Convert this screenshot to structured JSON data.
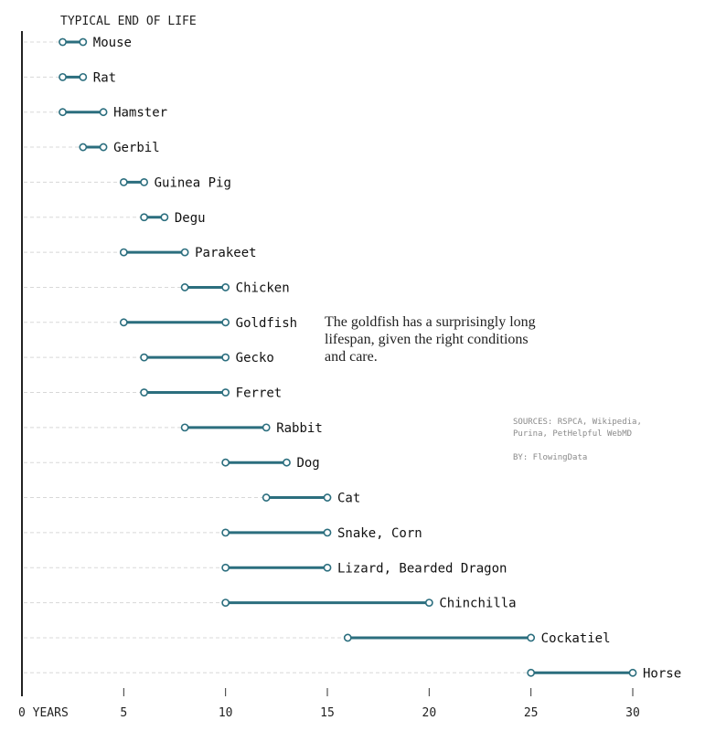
{
  "chart_data": {
    "type": "dumbbell",
    "title": "TYPICAL END OF LIFE",
    "xlabel": "YEARS",
    "xlim": [
      0,
      30
    ],
    "x_ticks": [
      0,
      5,
      10,
      15,
      20,
      25,
      30
    ],
    "x_tick_labels": [
      "0 YEARS",
      "5",
      "10",
      "15",
      "20",
      "25",
      "30"
    ],
    "grid": "dashed row guides from axis to range start",
    "series": [
      {
        "name": "Mouse",
        "min": 2,
        "max": 3
      },
      {
        "name": "Rat",
        "min": 2,
        "max": 3
      },
      {
        "name": "Hamster",
        "min": 2,
        "max": 4
      },
      {
        "name": "Gerbil",
        "min": 3,
        "max": 4
      },
      {
        "name": "Guinea Pig",
        "min": 5,
        "max": 6
      },
      {
        "name": "Degu",
        "min": 6,
        "max": 7
      },
      {
        "name": "Parakeet",
        "min": 5,
        "max": 8
      },
      {
        "name": "Chicken",
        "min": 8,
        "max": 10
      },
      {
        "name": "Goldfish",
        "min": 5,
        "max": 10
      },
      {
        "name": "Gecko",
        "min": 6,
        "max": 10
      },
      {
        "name": "Ferret",
        "min": 6,
        "max": 10
      },
      {
        "name": "Rabbit",
        "min": 8,
        "max": 12
      },
      {
        "name": "Dog",
        "min": 10,
        "max": 13
      },
      {
        "name": "Cat",
        "min": 12,
        "max": 15
      },
      {
        "name": "Snake, Corn",
        "min": 10,
        "max": 15
      },
      {
        "name": "Lizard, Bearded Dragon",
        "min": 10,
        "max": 15
      },
      {
        "name": "Chinchilla",
        "min": 10,
        "max": 20
      },
      {
        "name": "Cockatiel",
        "min": 16,
        "max": 25
      },
      {
        "name": "Horse",
        "min": 25,
        "max": 30
      }
    ],
    "annotation": "The goldfish has a surprisingly long lifespan, given the right conditions and care.",
    "colors": {
      "range": "#2b6e7e",
      "dot_fill": "#ffffff",
      "guide": "#d8d8d8",
      "axis": "#222222"
    }
  },
  "footer": {
    "sources_line1": "SOURCES: RSPCA, Wikipedia,",
    "sources_line2": "Purina, PetHelpful WebMD",
    "byline": "BY: FlowingData"
  }
}
